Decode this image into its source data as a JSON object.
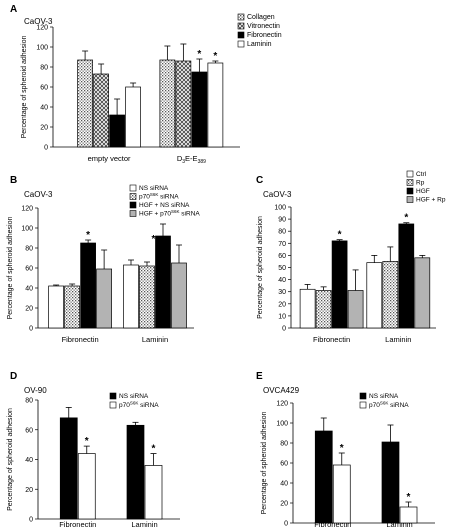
{
  "chart_data": [
    {
      "id": "A",
      "type": "bar",
      "panel_letter": "A",
      "cell_line": "CaOV-3",
      "ylabel": "Percentage of spheroid adhesion",
      "ylim": [
        0,
        120
      ],
      "yticks": [
        0,
        20,
        40,
        60,
        80,
        100,
        120
      ],
      "categories": [
        {
          "label": "empty vector"
        },
        {
          "label": "D",
          "sub": "3",
          "label_after": "E-E",
          "sub2": "389"
        }
      ],
      "legend_position": "top-right",
      "series": [
        {
          "name": "Collagen",
          "pattern": "dots",
          "values": [
            87,
            87
          ],
          "errors": [
            9,
            14
          ]
        },
        {
          "name": "Vitronectin",
          "pattern": "cross",
          "values": [
            73,
            86
          ],
          "errors": [
            10,
            17
          ]
        },
        {
          "name": "Fibronectin",
          "pattern": "black",
          "values": [
            32,
            75
          ],
          "errors": [
            16,
            13
          ]
        },
        {
          "name": "Laminin",
          "pattern": "white",
          "values": [
            60,
            84
          ],
          "errors": [
            4,
            2
          ]
        }
      ],
      "significance": [
        {
          "series": 2,
          "category": 1,
          "label": "*"
        },
        {
          "series": 3,
          "category": 1,
          "label": "*"
        }
      ]
    },
    {
      "id": "B",
      "type": "bar",
      "panel_letter": "B",
      "cell_line": "CaOV-3",
      "ylabel": "Percentage of spheroid adhesion",
      "ylim": [
        0,
        120
      ],
      "yticks": [
        0,
        20,
        40,
        60,
        80,
        100,
        120
      ],
      "categories": [
        {
          "label": "Fibronectin"
        },
        {
          "label": "Laminin"
        }
      ],
      "legend_position": "top-right",
      "series": [
        {
          "name": "NS siRNA",
          "name_parts": [
            "NS siRNA"
          ],
          "pattern": "white",
          "values": [
            42,
            63
          ],
          "errors": [
            1,
            5
          ]
        },
        {
          "name": "p70S6K siRNA",
          "name_parts": [
            "p70",
            "S6K",
            " siRNA"
          ],
          "pattern": "dots",
          "values": [
            42,
            62
          ],
          "errors": [
            2,
            4
          ]
        },
        {
          "name": "HGF + NS siRNA",
          "name_parts": [
            "HGF + NS siRNA"
          ],
          "pattern": "black",
          "values": [
            85,
            92
          ],
          "errors": [
            3,
            12
          ]
        },
        {
          "name": "HGF + p70S6K siRNA",
          "name_parts": [
            "HGF + p70",
            "S6K",
            " siRNA"
          ],
          "pattern": "gray",
          "values": [
            59,
            65
          ],
          "errors": [
            19,
            18
          ]
        }
      ],
      "significance": [
        {
          "series": 2,
          "category": 0,
          "label": "*"
        },
        {
          "series": 2,
          "category": 1,
          "label": "*",
          "side": "left"
        }
      ]
    },
    {
      "id": "C",
      "type": "bar",
      "panel_letter": "C",
      "cell_line": "CaOV-3",
      "ylabel": "Percentage of spheroid adhesion",
      "ylim": [
        0,
        100
      ],
      "yticks": [
        0,
        10,
        20,
        30,
        40,
        50,
        60,
        70,
        80,
        90,
        100
      ],
      "categories": [
        {
          "label": "Fibronectin"
        },
        {
          "label": "Laminin"
        }
      ],
      "legend_position": "top-right",
      "series": [
        {
          "name": "Ctrl",
          "name_parts": [
            "Ctrl"
          ],
          "pattern": "white",
          "values": [
            32,
            54
          ],
          "errors": [
            4,
            6
          ]
        },
        {
          "name": "Rp",
          "name_parts": [
            "Rp"
          ],
          "pattern": "dots",
          "values": [
            31,
            55
          ],
          "errors": [
            3,
            12
          ]
        },
        {
          "name": "HGF",
          "name_parts": [
            "HGF"
          ],
          "pattern": "black",
          "values": [
            72,
            86
          ],
          "errors": [
            1,
            1
          ]
        },
        {
          "name": "HGF + Rp",
          "name_parts": [
            "HGF + Rp"
          ],
          "pattern": "gray",
          "values": [
            31,
            58
          ],
          "errors": [
            17,
            2
          ]
        }
      ],
      "significance": [
        {
          "series": 2,
          "category": 0,
          "label": "*"
        },
        {
          "series": 2,
          "category": 1,
          "label": "*"
        }
      ]
    },
    {
      "id": "D",
      "type": "bar",
      "panel_letter": "D",
      "cell_line": "OV-90",
      "ylabel": "Percentage of spheroid adhesion",
      "ylim": [
        0,
        80
      ],
      "yticks": [
        0,
        20,
        40,
        60,
        80
      ],
      "categories": [
        {
          "label": "Fibronectin"
        },
        {
          "label": "Laminin"
        }
      ],
      "legend_position": "top-right",
      "series": [
        {
          "name": "NS siRNA",
          "name_parts": [
            "NS siRNA"
          ],
          "pattern": "black",
          "values": [
            68,
            63
          ],
          "errors": [
            7,
            2
          ]
        },
        {
          "name": "p70S6K siRNA",
          "name_parts": [
            "p70",
            "S6K",
            " siRNA"
          ],
          "pattern": "white",
          "values": [
            44,
            36
          ],
          "errors": [
            5,
            8
          ]
        }
      ],
      "significance": [
        {
          "series": 1,
          "category": 0,
          "label": "*"
        },
        {
          "series": 1,
          "category": 1,
          "label": "*"
        }
      ]
    },
    {
      "id": "E",
      "type": "bar",
      "panel_letter": "E",
      "cell_line": "OVCA429",
      "ylabel": "Percentage of spheroid adhesion",
      "ylim": [
        0,
        120
      ],
      "yticks": [
        0,
        20,
        40,
        60,
        80,
        100,
        120
      ],
      "categories": [
        {
          "label": "Fibronectin"
        },
        {
          "label": "Laminin"
        }
      ],
      "legend_position": "top-right",
      "series": [
        {
          "name": "NS siRNA",
          "name_parts": [
            "NS siRNA"
          ],
          "pattern": "black",
          "values": [
            92,
            81
          ],
          "errors": [
            13,
            17
          ]
        },
        {
          "name": "p70S6K siRNA",
          "name_parts": [
            "p70",
            "S6K",
            " siRNA"
          ],
          "pattern": "white",
          "values": [
            58,
            16
          ],
          "errors": [
            12,
            5
          ]
        }
      ],
      "significance": [
        {
          "series": 1,
          "category": 0,
          "label": "*"
        },
        {
          "series": 1,
          "category": 1,
          "label": "*"
        }
      ]
    }
  ]
}
